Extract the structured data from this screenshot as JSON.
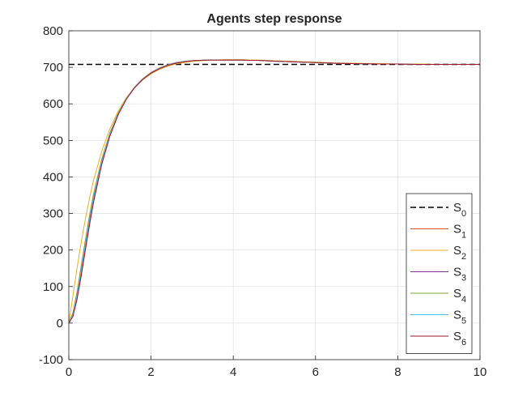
{
  "chart_data": {
    "type": "line",
    "title": "Agents step response",
    "xlabel": "",
    "ylabel": "",
    "xlim": [
      0,
      10
    ],
    "ylim": [
      -100,
      800
    ],
    "xticks": [
      0,
      2,
      4,
      6,
      8,
      10
    ],
    "yticks": [
      -100,
      0,
      100,
      200,
      300,
      400,
      500,
      600,
      700,
      800
    ],
    "grid": true,
    "legend_position": "lower-right",
    "series": [
      {
        "name": "S",
        "sub": "0",
        "color": "#000000",
        "dashed": true,
        "x": [
          0,
          10
        ],
        "y": [
          708,
          708
        ]
      },
      {
        "name": "S",
        "sub": "1",
        "color": "#d95319",
        "dashed": false,
        "x": [
          0,
          0.1,
          0.2,
          0.3,
          0.4,
          0.5,
          0.6,
          0.8,
          1.0,
          1.2,
          1.4,
          1.6,
          1.8,
          2.0,
          2.2,
          2.4,
          2.6,
          2.8,
          3.0,
          3.2,
          3.4,
          3.6,
          3.8,
          4.0,
          4.2,
          4.4,
          4.6,
          4.8,
          5.0,
          5.5,
          6.0,
          6.5,
          7.0,
          7.5,
          8.0,
          8.5,
          9.0,
          10.0
        ],
        "y": [
          0,
          28,
          85,
          155,
          225,
          292,
          352,
          448,
          521,
          575,
          616,
          646,
          669,
          686,
          698,
          707,
          713,
          716,
          718,
          719,
          720,
          720,
          720,
          720,
          720,
          719,
          719,
          718,
          717,
          715,
          713,
          711,
          710,
          709,
          709,
          708,
          708,
          708
        ]
      },
      {
        "name": "S",
        "sub": "2",
        "color": "#edb120",
        "dashed": false,
        "x": [
          0,
          0.1,
          0.2,
          0.3,
          0.4,
          0.5,
          0.6,
          0.8,
          1.0,
          1.2,
          1.4,
          1.6,
          1.8,
          2.0,
          2.2,
          2.4,
          2.6,
          2.8,
          3.0,
          3.2,
          3.4,
          3.6,
          3.8,
          4.0,
          4.2,
          4.4,
          4.6,
          4.8,
          5.0,
          5.5,
          6.0,
          6.5,
          7.0,
          7.5,
          8.0,
          8.5,
          9.0,
          10.0
        ],
        "y": [
          0,
          75,
          150,
          220,
          283,
          340,
          390,
          470,
          532,
          580,
          617,
          645,
          666,
          682,
          694,
          703,
          709,
          713,
          716,
          718,
          719,
          720,
          721,
          721,
          721,
          720,
          720,
          719,
          718,
          716,
          714,
          712,
          711,
          710,
          709,
          709,
          708,
          708
        ]
      },
      {
        "name": "S",
        "sub": "3",
        "color": "#7e2f8e",
        "dashed": false,
        "x": [
          0,
          0.1,
          0.2,
          0.3,
          0.4,
          0.5,
          0.6,
          0.8,
          1.0,
          1.2,
          1.4,
          1.6,
          1.8,
          2.0,
          2.2,
          2.4,
          2.6,
          2.8,
          3.0,
          3.2,
          3.4,
          3.6,
          3.8,
          4.0,
          4.2,
          4.4,
          4.6,
          4.8,
          5.0,
          5.5,
          6.0,
          6.5,
          7.0,
          7.5,
          8.0,
          8.5,
          9.0,
          10.0
        ],
        "y": [
          0,
          20,
          70,
          135,
          205,
          272,
          335,
          438,
          515,
          572,
          614,
          645,
          668,
          685,
          697,
          706,
          712,
          716,
          718,
          719,
          720,
          720,
          720,
          720,
          720,
          719,
          719,
          718,
          717,
          715,
          713,
          711,
          710,
          709,
          709,
          708,
          708,
          708
        ]
      },
      {
        "name": "S",
        "sub": "4",
        "color": "#77ac30",
        "dashed": false,
        "x": [
          0,
          0.1,
          0.2,
          0.3,
          0.4,
          0.5,
          0.6,
          0.8,
          1.0,
          1.2,
          1.4,
          1.6,
          1.8,
          2.0,
          2.2,
          2.4,
          2.6,
          2.8,
          3.0,
          3.2,
          3.4,
          3.6,
          3.8,
          4.0,
          4.2,
          4.4,
          4.6,
          4.8,
          5.0,
          5.5,
          6.0,
          6.5,
          7.0,
          7.5,
          8.0,
          8.5,
          9.0,
          10.0
        ],
        "y": [
          0,
          25,
          80,
          150,
          220,
          288,
          349,
          446,
          520,
          574,
          615,
          645,
          668,
          685,
          697,
          706,
          712,
          716,
          718,
          719,
          720,
          720,
          720,
          720,
          720,
          719,
          719,
          718,
          717,
          715,
          713,
          711,
          710,
          709,
          709,
          708,
          708,
          708
        ]
      },
      {
        "name": "S",
        "sub": "5",
        "color": "#4dbeee",
        "dashed": false,
        "x": [
          0,
          0.1,
          0.2,
          0.3,
          0.4,
          0.5,
          0.6,
          0.8,
          1.0,
          1.2,
          1.4,
          1.6,
          1.8,
          2.0,
          2.2,
          2.4,
          2.6,
          2.8,
          3.0,
          3.2,
          3.4,
          3.6,
          3.8,
          4.0,
          4.2,
          4.4,
          4.6,
          4.8,
          5.0,
          5.5,
          6.0,
          6.5,
          7.0,
          7.5,
          8.0,
          8.5,
          9.0,
          10.0
        ],
        "y": [
          0,
          22,
          75,
          142,
          212,
          280,
          342,
          442,
          517,
          573,
          614,
          645,
          668,
          685,
          697,
          706,
          712,
          716,
          718,
          719,
          720,
          720,
          720,
          720,
          720,
          719,
          719,
          718,
          717,
          715,
          713,
          711,
          710,
          709,
          709,
          708,
          708,
          708
        ]
      },
      {
        "name": "S",
        "sub": "6",
        "color": "#a2142f",
        "dashed": false,
        "x": [
          0,
          0.1,
          0.2,
          0.3,
          0.4,
          0.5,
          0.6,
          0.8,
          1.0,
          1.2,
          1.4,
          1.6,
          1.8,
          2.0,
          2.2,
          2.4,
          2.6,
          2.8,
          3.0,
          3.2,
          3.4,
          3.6,
          3.8,
          4.0,
          4.2,
          4.4,
          4.6,
          4.8,
          5.0,
          5.5,
          6.0,
          6.5,
          7.0,
          7.5,
          8.0,
          8.5,
          9.0,
          10.0
        ],
        "y": [
          0,
          18,
          65,
          128,
          198,
          266,
          330,
          434,
          512,
          570,
          613,
          644,
          667,
          684,
          696,
          705,
          711,
          715,
          718,
          719,
          720,
          720,
          720,
          720,
          720,
          719,
          719,
          718,
          717,
          715,
          713,
          711,
          710,
          709,
          709,
          708,
          708,
          708
        ]
      }
    ]
  }
}
